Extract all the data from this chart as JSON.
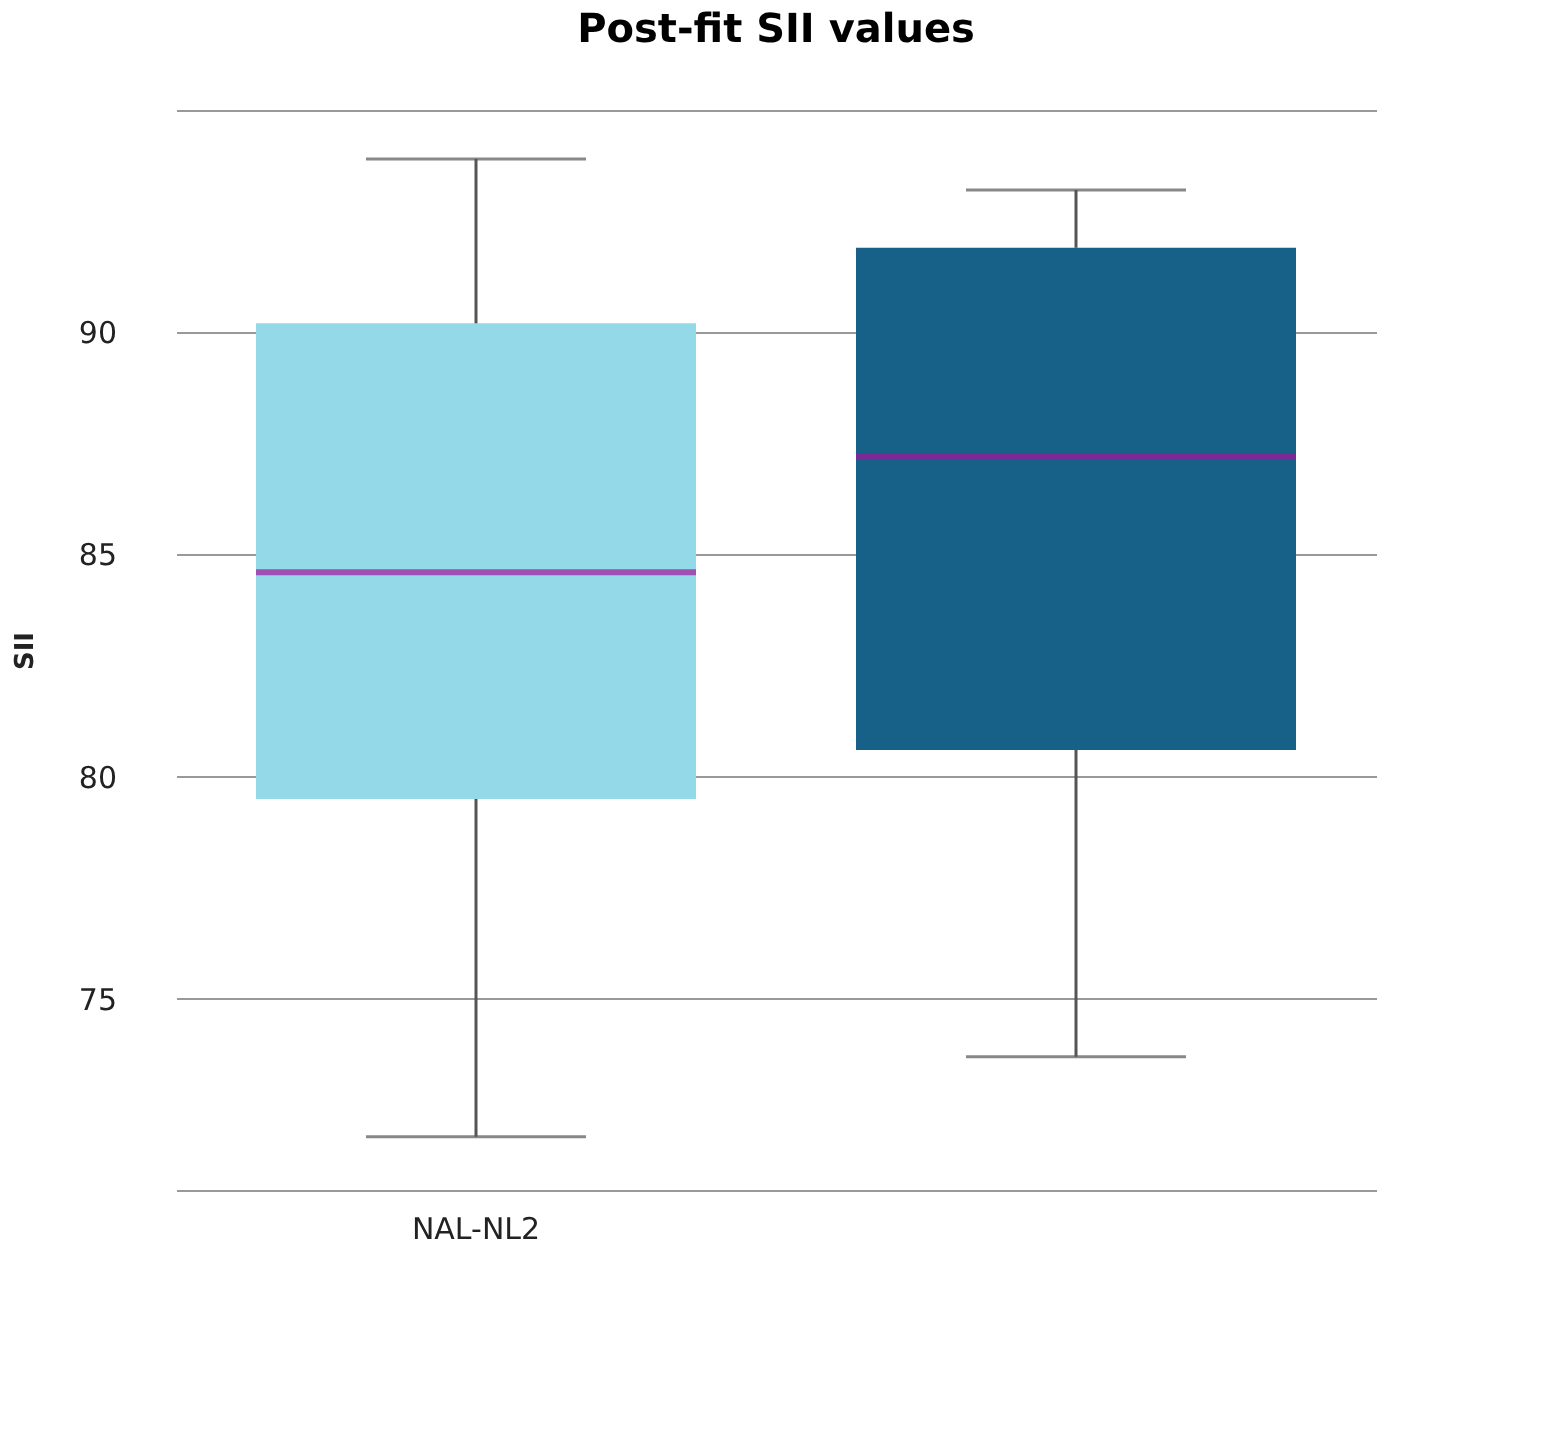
{
  "chart_data": {
    "type": "box",
    "title": "Post-fit SII values",
    "ylabel": "SII",
    "categories": [
      "NAL-NL2",
      null
    ],
    "colors": [
      "#93d9e7",
      "#176087"
    ],
    "boxes": [
      {
        "low": 71.9,
        "q1": 79.5,
        "median": 84.6,
        "q3": 90.2,
        "high": 93.9
      },
      {
        "low": 73.7,
        "q1": 80.6,
        "median": 87.2,
        "q3": 91.9,
        "high": 93.2
      }
    ],
    "ylim": [
      70.7,
      95
    ],
    "yticks": [
      75,
      80,
      85,
      90,
      {
        "value": 95,
        "label": null
      }
    ],
    "grid": "y"
  }
}
